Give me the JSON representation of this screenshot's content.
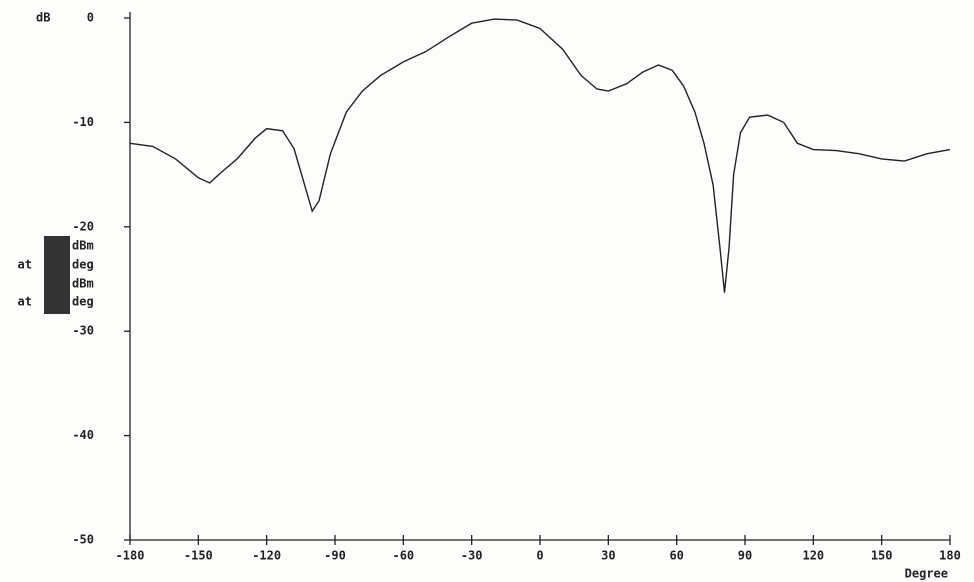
{
  "chart_data": {
    "type": "line",
    "y_label": "dB",
    "x_label": "Degree",
    "annotations": [
      "dBm",
      "at",
      "deg",
      "dBm",
      "at",
      "deg"
    ],
    "x": [
      -180,
      -170,
      -160,
      -150,
      -145,
      -140,
      -133,
      -125,
      -120,
      -113,
      -108,
      -104,
      -100,
      -97,
      -92,
      -85,
      -78,
      -70,
      -60,
      -50,
      -40,
      -30,
      -20,
      -10,
      0,
      10,
      18,
      25,
      30,
      38,
      45,
      52,
      58,
      63,
      68,
      72,
      76,
      79,
      81,
      83,
      85,
      88,
      92,
      100,
      107,
      113,
      120,
      130,
      140,
      150,
      160,
      170,
      180
    ],
    "series": [
      {
        "color": "#222222",
        "values": [
          -12.0,
          -12.3,
          -13.5,
          -15.3,
          -15.8,
          -14.8,
          -13.5,
          -11.5,
          -10.6,
          -10.8,
          -12.5,
          -15.5,
          -18.5,
          -17.5,
          -13,
          -9,
          -7,
          -5.5,
          -4.2,
          -3.2,
          -1.8,
          -0.5,
          -0.1,
          -0.2,
          -1.0,
          -3,
          -5.5,
          -6.8,
          -7.0,
          -6.3,
          -5.2,
          -4.5,
          -5.0,
          -6.5,
          -9,
          -12,
          -16,
          -22,
          -26.3,
          -22,
          -15,
          -11,
          -9.5,
          -9.3,
          -10,
          -12,
          -12.6,
          -12.7,
          -13,
          -13.5,
          -13.7,
          -13,
          -12.6
        ]
      }
    ],
    "xlim": [
      -180,
      180
    ],
    "ylim": [
      -50,
      0
    ],
    "xticks": [
      -180,
      -150,
      -120,
      -90,
      -60,
      -30,
      0,
      30,
      60,
      90,
      120,
      150,
      180
    ],
    "yticks": [
      0,
      -10,
      -20,
      -30,
      -40,
      -50
    ]
  }
}
